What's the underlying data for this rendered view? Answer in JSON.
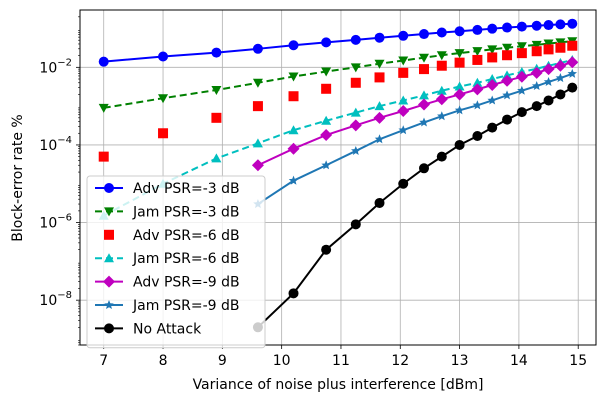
{
  "chart_data": {
    "type": "line",
    "xlabel": "Variance of noise plus interference [dBm]",
    "ylabel": "Block-error rate %",
    "xlim": [
      6.6,
      15.3
    ],
    "ylim": [
      7e-10,
      0.3
    ],
    "yscale": "log",
    "xticks": [
      7,
      8,
      9,
      10,
      11,
      12,
      13,
      14,
      15
    ],
    "yticks": [
      1e-08,
      1e-06,
      0.0001,
      0.01
    ],
    "grid": true,
    "legend_position": "bottom-left",
    "series": [
      {
        "name": "Adv PSR=-3 dB",
        "color": "#0000ff",
        "line": "solid",
        "marker": "circle",
        "x": [
          7,
          8,
          8.9,
          9.6,
          10.2,
          10.75,
          11.25,
          11.65,
          12.05,
          12.4,
          12.7,
          13.0,
          13.3,
          13.55,
          13.8,
          14.05,
          14.3,
          14.5,
          14.7,
          14.9
        ],
        "y": [
          0.014,
          0.019,
          0.024,
          0.03,
          0.037,
          0.044,
          0.051,
          0.058,
          0.065,
          0.072,
          0.079,
          0.085,
          0.092,
          0.099,
          0.106,
          0.112,
          0.118,
          0.123,
          0.128,
          0.133
        ]
      },
      {
        "name": "Jam PSR=-3 dB",
        "color": "#008000",
        "line": "dashed",
        "marker": "triangle-down",
        "x": [
          7,
          8,
          8.9,
          9.6,
          10.2,
          10.75,
          11.25,
          11.65,
          12.05,
          12.4,
          12.7,
          13.0,
          13.3,
          13.55,
          13.8,
          14.05,
          14.3,
          14.5,
          14.7,
          14.9
        ],
        "y": [
          0.0009,
          0.0016,
          0.0026,
          0.004,
          0.0058,
          0.0078,
          0.01,
          0.0124,
          0.015,
          0.0177,
          0.0205,
          0.0233,
          0.0262,
          0.029,
          0.032,
          0.035,
          0.038,
          0.041,
          0.044,
          0.047
        ]
      },
      {
        "name": "Adv PSR=-6 dB",
        "color": "#ff0000",
        "line": "none",
        "marker": "square",
        "x": [
          7,
          8,
          8.9,
          9.6,
          10.2,
          10.75,
          11.25,
          11.65,
          12.05,
          12.4,
          12.7,
          13.0,
          13.3,
          13.55,
          13.8,
          14.05,
          14.3,
          14.5,
          14.7,
          14.9
        ],
        "y": [
          5e-05,
          0.0002,
          0.0005,
          0.001,
          0.0018,
          0.0028,
          0.004,
          0.0055,
          0.0072,
          0.009,
          0.011,
          0.0132,
          0.0155,
          0.018,
          0.0205,
          0.0232,
          0.026,
          0.029,
          0.032,
          0.036
        ]
      },
      {
        "name": "Jam PSR=-6 dB",
        "color": "#00bfbf",
        "line": "dashed",
        "marker": "triangle-up",
        "x": [
          7,
          8,
          8.9,
          9.6,
          10.2,
          10.75,
          11.25,
          11.65,
          12.05,
          12.4,
          12.7,
          13.0,
          13.3,
          13.55,
          13.8,
          14.05,
          14.3,
          14.5,
          14.7,
          14.9
        ],
        "y": [
          1.5e-06,
          1e-05,
          4.5e-05,
          0.00011,
          0.00024,
          0.00042,
          0.00068,
          0.001,
          0.0014,
          0.0019,
          0.0025,
          0.0032,
          0.004,
          0.005,
          0.0062,
          0.0076,
          0.0092,
          0.011,
          0.013,
          0.0155
        ]
      },
      {
        "name": "Adv PSR=-9 dB",
        "color": "#bf00bf",
        "line": "solid",
        "marker": "diamond",
        "x": [
          9.6,
          10.2,
          10.75,
          11.25,
          11.65,
          12.05,
          12.4,
          12.7,
          13.0,
          13.3,
          13.55,
          13.8,
          14.05,
          14.3,
          14.5,
          14.7,
          14.9
        ],
        "y": [
          3e-05,
          8e-05,
          0.00018,
          0.00032,
          0.0005,
          0.00075,
          0.0011,
          0.0015,
          0.002,
          0.0027,
          0.0035,
          0.0045,
          0.0057,
          0.0072,
          0.009,
          0.011,
          0.0135
        ]
      },
      {
        "name": "Jam PSR=-9 dB",
        "color": "#1f77b4",
        "line": "solid",
        "marker": "star",
        "x": [
          9.6,
          10.2,
          10.75,
          11.25,
          11.65,
          12.05,
          12.4,
          12.7,
          13.0,
          13.3,
          13.55,
          13.8,
          14.05,
          14.3,
          14.5,
          14.7,
          14.9
        ],
        "y": [
          3e-06,
          1.2e-05,
          3e-05,
          7e-05,
          0.00014,
          0.00024,
          0.00038,
          0.00055,
          0.00078,
          0.00105,
          0.0014,
          0.0019,
          0.0025,
          0.0033,
          0.0042,
          0.0053,
          0.0068
        ]
      },
      {
        "name": "No Attack",
        "color": "#000000",
        "line": "solid",
        "marker": "circle",
        "x": [
          9.6,
          10.2,
          10.75,
          11.25,
          11.65,
          12.05,
          12.4,
          12.7,
          13.0,
          13.3,
          13.55,
          13.8,
          14.05,
          14.3,
          14.5,
          14.7,
          14.9
        ],
        "y": [
          2e-09,
          1.5e-08,
          2e-07,
          9e-07,
          3.2e-06,
          1e-05,
          2.5e-05,
          5e-05,
          0.0001,
          0.00017,
          0.00028,
          0.00045,
          0.0007,
          0.001,
          0.0014,
          0.002,
          0.003
        ]
      }
    ]
  }
}
